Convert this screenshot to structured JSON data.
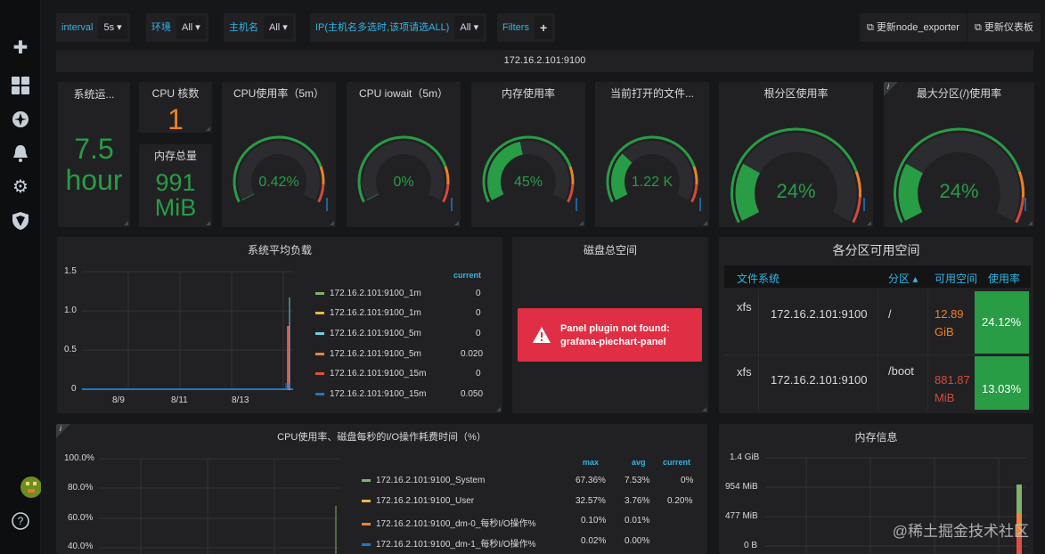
{
  "variables": [
    {
      "label": "interval",
      "value": "5s ▾"
    },
    {
      "label": "环境",
      "value": "All ▾"
    },
    {
      "label": "主机名",
      "value": "All ▾"
    },
    {
      "label": "IP(主机名多选时,该项请选ALL)",
      "value": "All ▾"
    }
  ],
  "filters": {
    "label": "Filters",
    "add": "+"
  },
  "links": {
    "node_exporter": "更新node_exporter",
    "dashboard": "更新仪表板"
  },
  "row_title": "172.16.2.101:9100",
  "stats": {
    "uptime": {
      "title": "系统运...",
      "value": "7.5",
      "unit": "hour"
    },
    "cpu_cores": {
      "title": "CPU 核数",
      "value": "1"
    },
    "mem_total": {
      "title": "内存总量",
      "value": "991",
      "unit": "MiB"
    }
  },
  "gauges": [
    {
      "title": "CPU使用率（5m）",
      "value": "0.42%",
      "pct": 0.0042
    },
    {
      "title": "CPU iowait（5m）",
      "value": "0%",
      "pct": 0
    },
    {
      "title": "内存使用率",
      "value": "45%",
      "pct": 0.45
    },
    {
      "title": "当前打开的文件...",
      "value": "1.22 K",
      "pct": 0.3
    },
    {
      "title": "根分区使用率",
      "value": "24%",
      "pct": 0.24
    },
    {
      "title": "最大分区(/)使用率",
      "value": "24%",
      "pct": 0.24
    }
  ],
  "colors": {
    "green": "#299c46",
    "orange": "#ed8128",
    "red": "#d44a3a",
    "blue": "#33b5e5",
    "accent": "#33b5e5"
  },
  "load": {
    "title": "系统平均负载",
    "yticks": [
      "1.5",
      "1.0",
      "0.5",
      "0"
    ],
    "xticks": [
      "8/9",
      "8/11",
      "8/13"
    ],
    "current_label": "current",
    "series": [
      {
        "name": "172.16.2.101:9100_1m",
        "current": "0",
        "color": "#7eb26d"
      },
      {
        "name": "172.16.2.101:9100_1m",
        "current": "0",
        "color": "#eab839"
      },
      {
        "name": "172.16.2.101:9100_5m",
        "current": "0",
        "color": "#6ed0e0"
      },
      {
        "name": "172.16.2.101:9100_5m",
        "current": "0.020",
        "color": "#ef843c"
      },
      {
        "name": "172.16.2.101:9100_15m",
        "current": "0",
        "color": "#e24d42"
      },
      {
        "name": "172.16.2.101:9100_15m",
        "current": "0.050",
        "color": "#1f78c1"
      }
    ]
  },
  "disk": {
    "title": "磁盘总空间",
    "error_line1": "Panel plugin not found:",
    "error_line2": "grafana-piechart-panel"
  },
  "partitions": {
    "title": "各分区可用空间",
    "headers": [
      "文件系统",
      "分区 ▴",
      "可用空间",
      "使用率"
    ],
    "rows": [
      {
        "fs": "xfs",
        "host": "172.16.2.101:9100",
        "mount": "/",
        "free1": "12.89",
        "free2": "GiB",
        "usage": "24.12%",
        "free_color": "#ed8128"
      },
      {
        "fs": "xfs",
        "host": "172.16.2.101:9100",
        "mount": "/boot",
        "free1": "881.87",
        "free2": "MiB",
        "usage": "13.03%",
        "free_color": "#d44a3a"
      }
    ]
  },
  "cpuio": {
    "title": "CPU使用率、磁盘每秒的I/O操作耗费时间（%）",
    "yticks": [
      "100.0%",
      "80.0%",
      "60.0%",
      "40.0%"
    ],
    "headers": [
      "max",
      "avg",
      "current"
    ],
    "series": [
      {
        "name": "172.16.2.101:9100_System",
        "max": "67.36%",
        "avg": "7.53%",
        "current": "0%",
        "color": "#7eb26d"
      },
      {
        "name": "172.16.2.101:9100_User",
        "max": "32.57%",
        "avg": "3.76%",
        "current": "0.20%",
        "color": "#eab839"
      },
      {
        "name": "172.16.2.101:9100_dm-0_每秒I/O操作%",
        "max": "0.10%",
        "avg": "0.01%",
        "current": "",
        "color": "#ef843c"
      },
      {
        "name": "172.16.2.101:9100_dm-1_每秒I/O操作%",
        "max": "0.02%",
        "avg": "0.00%",
        "current": "",
        "color": "#1f78c1"
      }
    ]
  },
  "memory": {
    "title": "内存信息",
    "yticks": [
      "1.4 GiB",
      "954 MiB",
      "477 MiB",
      "0 B"
    ]
  },
  "watermark": "@稀土掘金技术社区"
}
